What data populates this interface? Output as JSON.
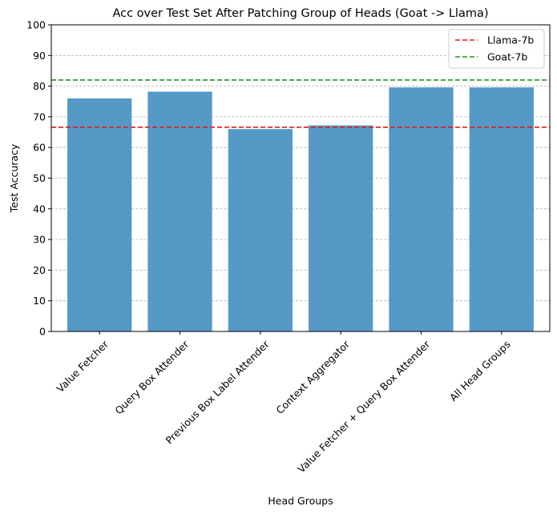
{
  "chart_data": {
    "type": "bar",
    "title": "Acc over Test Set After Patching Group of Heads (Goat -> Llama)",
    "xlabel": "Head Groups",
    "ylabel": "Test Accuracy",
    "ylim": [
      0,
      100
    ],
    "yticks": [
      "0",
      "10",
      "20",
      "30",
      "40",
      "50",
      "60",
      "70",
      "80",
      "90",
      "100"
    ],
    "grid": "y-dashed",
    "bar_color": "#5599c7",
    "categories": [
      "Value Fetcher",
      "Query Box Attender",
      "Previous Box Label Attender",
      "Context Aggregator",
      "Value Fetcher + Query Box Attender",
      "All Head Groups"
    ],
    "values": [
      76,
      78.2,
      66,
      67.2,
      79.6,
      79.6
    ],
    "reference_lines": [
      {
        "name": "Llama-7b",
        "value": 66.6,
        "color": "#e31a1c"
      },
      {
        "name": "Goat-7b",
        "value": 82,
        "color": "#1a9a1a"
      }
    ],
    "legend_position": "top-right"
  }
}
